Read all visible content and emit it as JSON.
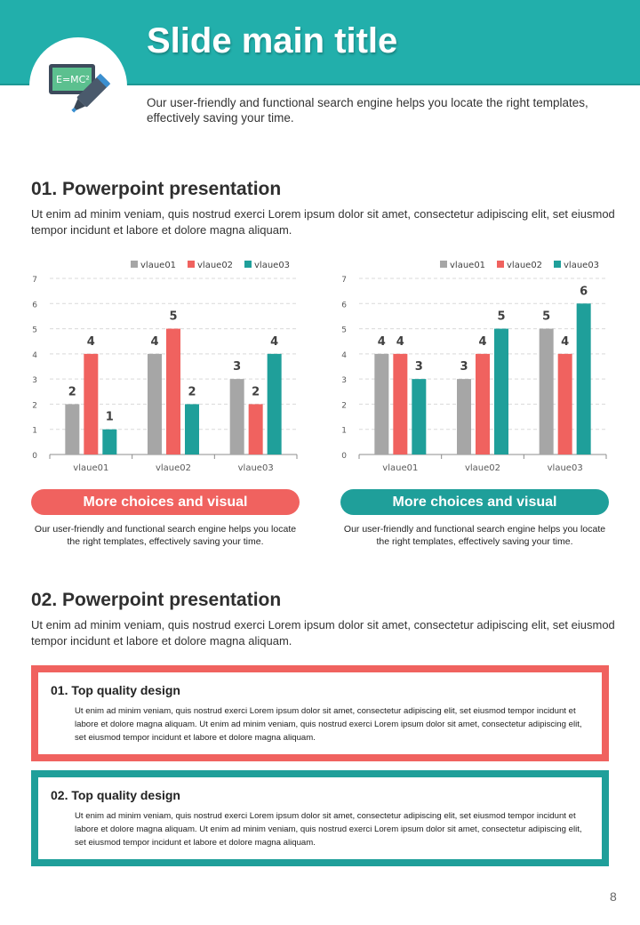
{
  "header": {
    "title": "Slide main title",
    "subtitle": "Our user-friendly and functional search engine helps you locate the right templates, effectively saving your time.",
    "icon": "formula-board-marker-icon",
    "icon_text": "E=MC²"
  },
  "colors": {
    "teal": "#22afab",
    "gray": "#a6a6a6",
    "red": "#f0625f",
    "teal_dark": "#1f9f9a"
  },
  "section1": {
    "heading": "01. Powerpoint presentation",
    "text": "Ut enim ad minim veniam, quis nostrud exerci  Lorem ipsum dolor sit amet, consectetur adipiscing elit, set eiusmod tempor incidunt et labore et dolore magna aliquam."
  },
  "chart_data": [
    {
      "type": "bar",
      "categories": [
        "vlaue01",
        "vlaue02",
        "vlaue03"
      ],
      "ylim": [
        0,
        7
      ],
      "yticks": [
        0,
        1,
        2,
        3,
        4,
        5,
        6,
        7
      ],
      "grid": true,
      "legend": "top-right",
      "series": [
        {
          "name": "vlaue01",
          "color": "#a6a6a6",
          "values": [
            2,
            4,
            3
          ]
        },
        {
          "name": "vlaue02",
          "color": "#f0625f",
          "values": [
            4,
            5,
            2
          ]
        },
        {
          "name": "vlaue03",
          "color": "#1f9f9a",
          "values": [
            1,
            2,
            4
          ]
        }
      ]
    },
    {
      "type": "bar",
      "categories": [
        "vlaue01",
        "vlaue02",
        "vlaue03"
      ],
      "ylim": [
        0,
        7
      ],
      "yticks": [
        0,
        1,
        2,
        3,
        4,
        5,
        6,
        7
      ],
      "grid": true,
      "legend": "top-right",
      "series": [
        {
          "name": "vlaue01",
          "color": "#a6a6a6",
          "values": [
            4,
            3,
            5
          ]
        },
        {
          "name": "vlaue02",
          "color": "#f0625f",
          "values": [
            4,
            4,
            4
          ]
        },
        {
          "name": "vlaue03",
          "color": "#1f9f9a",
          "values": [
            3,
            5,
            6
          ]
        }
      ]
    }
  ],
  "cards": [
    {
      "label": "More choices and visual",
      "text": "Our user-friendly and functional search engine helps you locate the right templates, effectively saving your time."
    },
    {
      "label": "More choices and visual",
      "text": "Our user-friendly and functional search engine helps you locate the right templates, effectively saving your time."
    }
  ],
  "section2": {
    "heading": "02. Powerpoint presentation",
    "text": "Ut enim ad minim veniam, quis nostrud exerci  Lorem ipsum dolor sit amet, consectetur adipiscing elit, set eiusmod tempor incidunt et labore et dolore magna aliquam."
  },
  "boxes": [
    {
      "title": "01. Top quality design",
      "text": "Ut enim ad minim veniam, quis nostrud exerci  Lorem ipsum dolor sit amet, consectetur adipiscing elit, set eiusmod tempor incidunt et labore et dolore magna aliquam. Ut enim ad minim veniam, quis nostrud exerci  Lorem ipsum dolor sit amet, consectetur adipiscing elit, set eiusmod tempor incidunt et labore et dolore magna aliquam."
    },
    {
      "title": "02. Top quality design",
      "text": "Ut enim ad minim veniam, quis nostrud exerci  Lorem ipsum dolor sit amet, consectetur adipiscing elit, set eiusmod tempor incidunt et labore et dolore magna aliquam. Ut enim ad minim veniam, quis nostrud exerci  Lorem ipsum dolor sit amet, consectetur adipiscing elit, set eiusmod tempor incidunt et labore et dolore magna aliquam."
    }
  ],
  "page_number": "8"
}
